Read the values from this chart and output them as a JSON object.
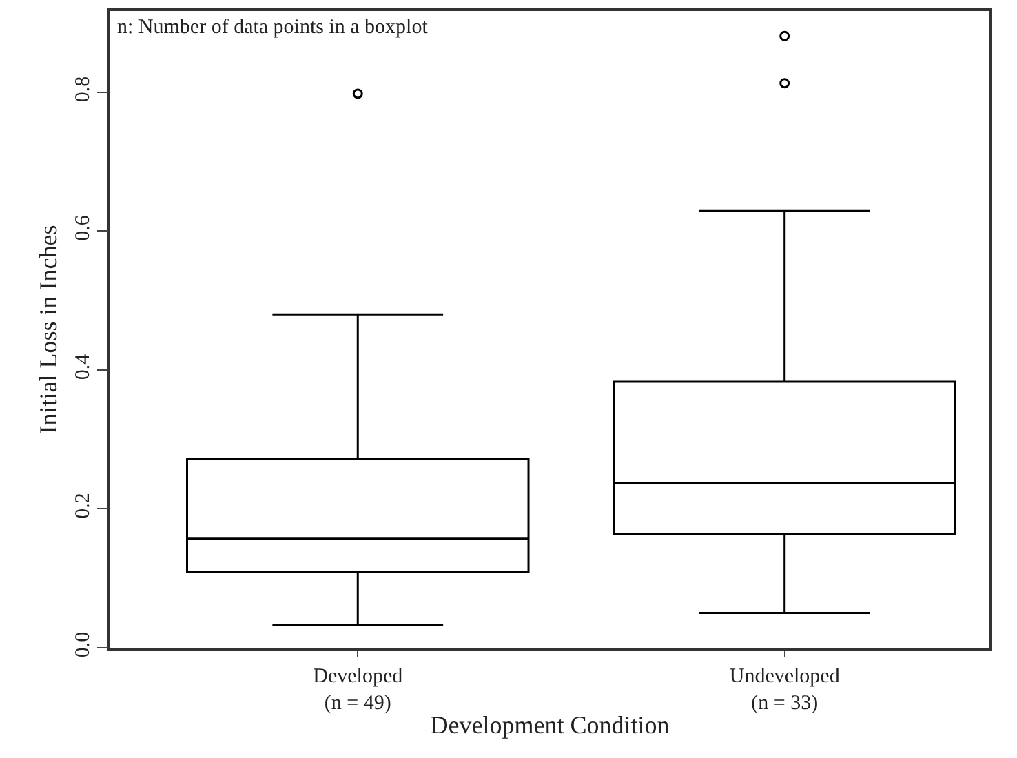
{
  "chart_data": {
    "type": "box",
    "xlabel": "Development Condition",
    "ylabel": "Initial Loss in Inches",
    "categories": [
      "Developed\n(n = 49)",
      "Undeveloped\n(n = 33)"
    ],
    "boxes": [
      {
        "low": 0.033,
        "q1": 0.109,
        "median": 0.157,
        "q3": 0.272,
        "high": 0.48,
        "outliers": [
          0.798
        ]
      },
      {
        "low": 0.05,
        "q1": 0.164,
        "median": 0.237,
        "q3": 0.383,
        "high": 0.629,
        "outliers": [
          0.813,
          0.881
        ]
      }
    ],
    "color": "#000000",
    "ylim": [
      0,
      0.917
    ],
    "yticks": [
      {
        "value": 0,
        "label": "0.0"
      },
      0.2,
      0.4,
      0.6,
      0.8
    ],
    "annotations": [
      "n: Number of data points in a boxplot"
    ]
  }
}
